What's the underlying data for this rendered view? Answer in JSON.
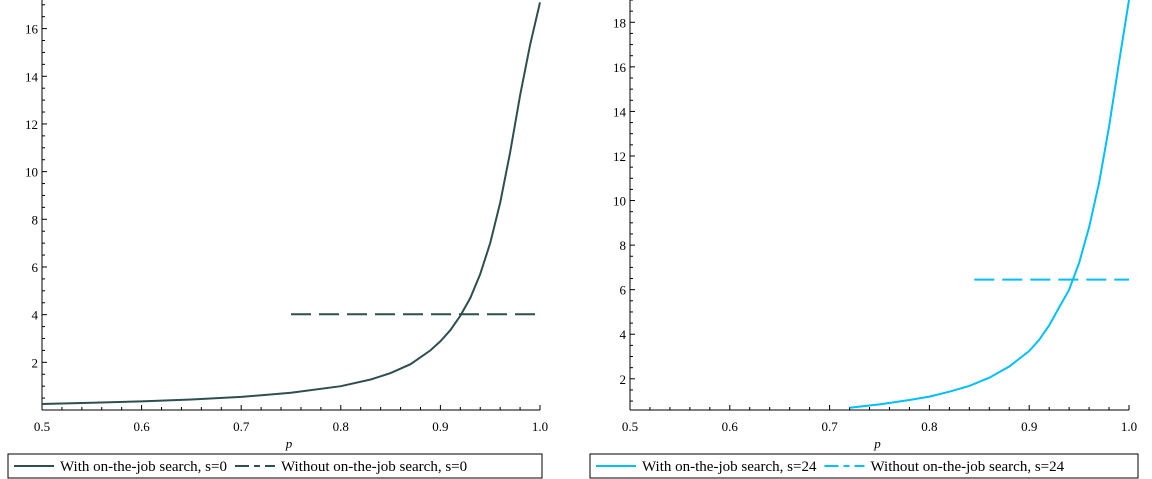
{
  "chart_data": [
    {
      "type": "line",
      "xlabel": "p",
      "ylabel": "",
      "xlim": [
        0.5,
        1.0
      ],
      "ylim": [
        0.0,
        17.2
      ],
      "x_ticks": [
        "0.5",
        "0.6",
        "0.7",
        "0.8",
        "0.9",
        "1.0"
      ],
      "y_ticks": [
        "2",
        "4",
        "6",
        "8",
        "10",
        "12",
        "14",
        "16"
      ],
      "grid": false,
      "legend_position": "bottom",
      "series": [
        {
          "name": "With on-the-job search, s=0",
          "style": "solid",
          "color": "#2f4f4f",
          "x": [
            0.5,
            0.55,
            0.6,
            0.65,
            0.7,
            0.75,
            0.8,
            0.83,
            0.85,
            0.87,
            0.89,
            0.9,
            0.91,
            0.92,
            0.93,
            0.94,
            0.95,
            0.96,
            0.97,
            0.98,
            0.99,
            1.0
          ],
          "y": [
            0.25,
            0.3,
            0.36,
            0.44,
            0.55,
            0.72,
            1.0,
            1.28,
            1.55,
            1.92,
            2.5,
            2.88,
            3.35,
            3.95,
            4.7,
            5.7,
            7.0,
            8.7,
            10.8,
            13.2,
            15.3,
            17.1
          ]
        },
        {
          "name": "Without on-the-job search, s=0",
          "style": "dashed",
          "color": "#2f4f4f",
          "x": [
            0.75,
            1.0
          ],
          "y": [
            4.02,
            4.02
          ]
        }
      ]
    },
    {
      "type": "line",
      "xlabel": "p",
      "ylabel": "",
      "xlim": [
        0.5,
        1.0
      ],
      "ylim": [
        0.6,
        19.0
      ],
      "x_ticks": [
        "0.5",
        "0.6",
        "0.7",
        "0.8",
        "0.9",
        "1.0"
      ],
      "y_ticks": [
        "2",
        "4",
        "6",
        "8",
        "10",
        "12",
        "14",
        "16",
        "18"
      ],
      "grid": false,
      "legend_position": "bottom",
      "series": [
        {
          "name": "With on-the-job search, s=24",
          "style": "solid",
          "color": "#00bfff",
          "x": [
            0.72,
            0.75,
            0.78,
            0.8,
            0.82,
            0.84,
            0.86,
            0.88,
            0.9,
            0.91,
            0.92,
            0.93,
            0.94,
            0.95,
            0.96,
            0.97,
            0.98,
            0.99,
            1.0
          ],
          "y": [
            0.7,
            0.85,
            1.05,
            1.2,
            1.42,
            1.68,
            2.05,
            2.55,
            3.25,
            3.75,
            4.4,
            5.2,
            6.0,
            7.2,
            8.8,
            10.8,
            13.3,
            16.2,
            19.0
          ]
        },
        {
          "name": "Without on-the-job search, s=24",
          "style": "dashed",
          "color": "#00bfff",
          "x": [
            0.845,
            1.0
          ],
          "y": [
            6.45,
            6.45
          ]
        }
      ]
    }
  ]
}
